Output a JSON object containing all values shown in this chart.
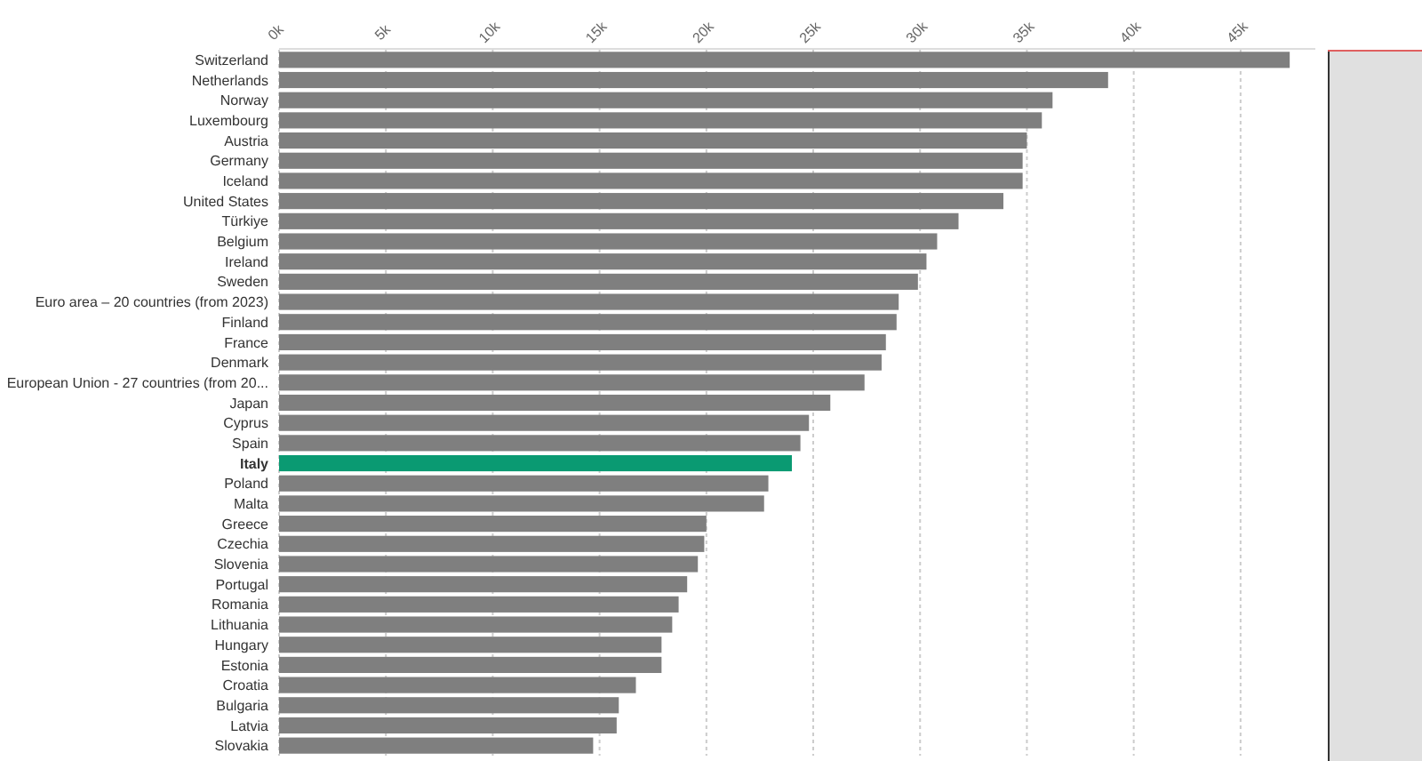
{
  "chart_data": {
    "type": "bar",
    "orientation": "horizontal",
    "categories": [
      "Switzerland",
      "Netherlands",
      "Norway",
      "Luxembourg",
      "Austria",
      "Germany",
      "Iceland",
      "United States",
      "Türkiye",
      "Belgium",
      "Ireland",
      "Sweden",
      "Euro area – 20 countries (from 2023)",
      "Finland",
      "France",
      "Denmark",
      "European Union - 27 countries (from 20...",
      "Japan",
      "Cyprus",
      "Spain",
      "Italy",
      "Poland",
      "Malta",
      "Greece",
      "Czechia",
      "Slovenia",
      "Portugal",
      "Romania",
      "Lithuania",
      "Hungary",
      "Estonia",
      "Croatia",
      "Bulgaria",
      "Latvia",
      "Slovakia"
    ],
    "values": [
      47300,
      38800,
      36200,
      35700,
      35000,
      34800,
      34800,
      33900,
      31800,
      30800,
      30300,
      29900,
      29000,
      28900,
      28400,
      28200,
      27400,
      25800,
      24800,
      24400,
      24000,
      22900,
      22700,
      20000,
      19900,
      19600,
      19100,
      18700,
      18400,
      17900,
      17900,
      16700,
      15900,
      15800,
      14700
    ],
    "colors": [
      "#7f7f7f",
      "#7f7f7f",
      "#7f7f7f",
      "#7f7f7f",
      "#7f7f7f",
      "#7f7f7f",
      "#7f7f7f",
      "#7f7f7f",
      "#7f7f7f",
      "#7f7f7f",
      "#7f7f7f",
      "#7f7f7f",
      "#7f7f7f",
      "#7f7f7f",
      "#7f7f7f",
      "#7f7f7f",
      "#7f7f7f",
      "#7f7f7f",
      "#7f7f7f",
      "#7f7f7f",
      "#0a9a72",
      "#7f7f7f",
      "#7f7f7f",
      "#7f7f7f",
      "#7f7f7f",
      "#7f7f7f",
      "#7f7f7f",
      "#7f7f7f",
      "#7f7f7f",
      "#7f7f7f",
      "#7f7f7f",
      "#7f7f7f",
      "#7f7f7f",
      "#7f7f7f",
      "#7f7f7f"
    ],
    "xlim": [
      0,
      48500
    ],
    "xticks": [
      {
        "value": 0,
        "label": "0k"
      },
      {
        "value": 5000,
        "label": "5k"
      },
      {
        "value": 10000,
        "label": "10k"
      },
      {
        "value": 15000,
        "label": "15k"
      },
      {
        "value": 20000,
        "label": "20k"
      },
      {
        "value": 25000,
        "label": "25k"
      },
      {
        "value": 30000,
        "label": "30k"
      },
      {
        "value": 35000,
        "label": "35k"
      },
      {
        "value": 40000,
        "label": "40k"
      },
      {
        "value": 45000,
        "label": "45k"
      }
    ],
    "grid": "x"
  }
}
